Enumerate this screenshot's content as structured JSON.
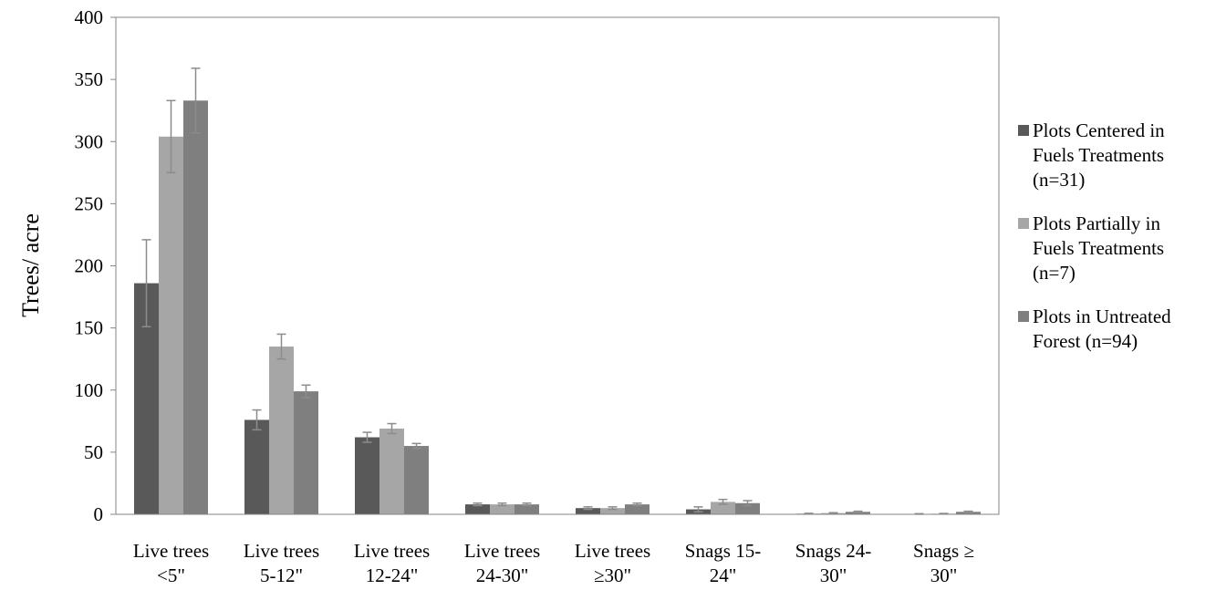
{
  "chart_data": {
    "type": "bar",
    "ylabel": "Trees/ acre",
    "xlabel": "",
    "ylim": [
      0,
      400
    ],
    "yticks": [
      0,
      50,
      100,
      150,
      200,
      250,
      300,
      350,
      400
    ],
    "grid": false,
    "legend_position": "right",
    "categories": [
      [
        "Live trees",
        "<5\""
      ],
      [
        "Live trees",
        "5-12\""
      ],
      [
        "Live trees",
        "12-24\""
      ],
      [
        "Live trees",
        "24-30\""
      ],
      [
        "Live trees",
        "≥30\""
      ],
      [
        "Snags 15-",
        "24\""
      ],
      [
        "Snags 24-",
        "30\""
      ],
      [
        "Snags ≥",
        "30\""
      ]
    ],
    "series": [
      {
        "name": "Plots Centered in Fuels Treatments (n=31)",
        "legend_lines": [
          "Plots Centered in",
          "Fuels Treatments",
          "(n=31)"
        ],
        "color": "#595959",
        "values": [
          186,
          76,
          62,
          8,
          5,
          4,
          0.5,
          0.3
        ],
        "errors": [
          35,
          8,
          4,
          1,
          1,
          2,
          0.3,
          0.2
        ]
      },
      {
        "name": "Plots Partially in Fuels Treatments (n=7)",
        "legend_lines": [
          "Plots Partially in",
          "Fuels Treatments",
          "(n=7)"
        ],
        "color": "#a6a6a6",
        "values": [
          304,
          135,
          69,
          8,
          5,
          10,
          1,
          0.5
        ],
        "errors": [
          29,
          10,
          4,
          1,
          1,
          2,
          0.3,
          0.2
        ]
      },
      {
        "name": "Plots in Untreated Forest (n=94)",
        "legend_lines": [
          "Plots in Untreated",
          "Forest (n=94)"
        ],
        "color": "#7f7f7f",
        "values": [
          333,
          99,
          55,
          8,
          8,
          9,
          2,
          2
        ],
        "errors": [
          26,
          5,
          2,
          1,
          1,
          2,
          0.5,
          0.5
        ]
      }
    ]
  }
}
